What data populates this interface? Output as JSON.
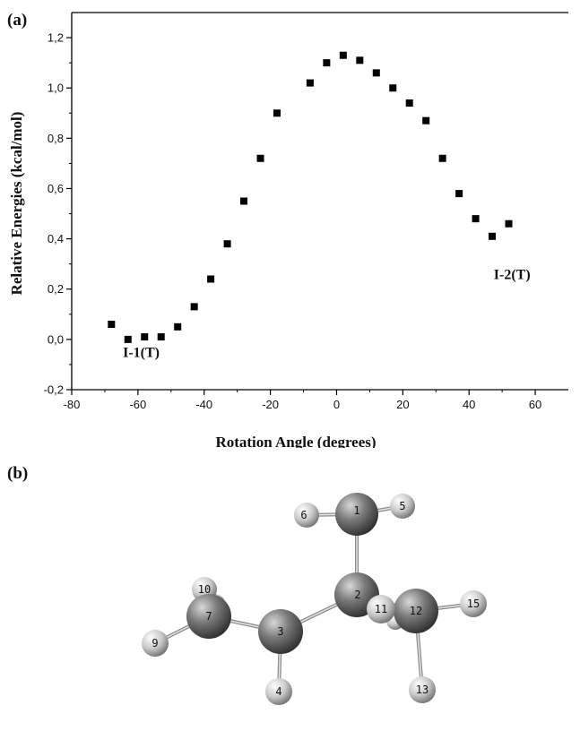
{
  "panel_a_label": "(a)",
  "panel_b_label": "(b)",
  "chart_data": {
    "type": "scatter",
    "xlabel": "Rotation Angle (degrees)",
    "ylabel": "Relative Energies (kcal/mol)",
    "xlim": [
      -80,
      70
    ],
    "ylim": [
      -0.2,
      1.3
    ],
    "x_ticks": [
      -80,
      -60,
      -40,
      -20,
      0,
      20,
      40,
      60
    ],
    "x_tick_labels": [
      "-80",
      "-60",
      "-40",
      "-20",
      "0",
      "20",
      "40",
      "60"
    ],
    "y_ticks": [
      -0.2,
      0.0,
      0.2,
      0.4,
      0.6,
      0.8,
      1.0,
      1.2
    ],
    "y_tick_labels": [
      "-0,2",
      "0,0",
      "0,2",
      "0,4",
      "0,6",
      "0,8",
      "1,0",
      "1,2"
    ],
    "grid": false,
    "marker": "square",
    "marker_color": "#000000",
    "x": [
      -68,
      -63,
      -58,
      -53,
      -48,
      -43,
      -38,
      -33,
      -28,
      -23,
      -18,
      -8,
      -3,
      2,
      7,
      12,
      17,
      22,
      27,
      32,
      37,
      42,
      47,
      52
    ],
    "y": [
      0.06,
      0.0,
      0.01,
      0.01,
      0.05,
      0.13,
      0.24,
      0.38,
      0.55,
      0.72,
      0.9,
      1.02,
      1.1,
      1.13,
      1.11,
      1.06,
      1.0,
      0.94,
      0.87,
      0.72,
      0.58,
      0.48,
      0.41,
      0.46
    ],
    "annotations": [
      {
        "text": "I-1(T)",
        "x": -59,
        "y": -0.07
      },
      {
        "text": "I-2(T)",
        "x": 53,
        "y": 0.24
      }
    ]
  },
  "molecule": {
    "atoms": [
      {
        "id": "1",
        "element": "C"
      },
      {
        "id": "2",
        "element": "C"
      },
      {
        "id": "3",
        "element": "C"
      },
      {
        "id": "4",
        "element": "H"
      },
      {
        "id": "5",
        "element": "H"
      },
      {
        "id": "6",
        "element": "H"
      },
      {
        "id": "7",
        "element": "C"
      },
      {
        "id": "9",
        "element": "H"
      },
      {
        "id": "10",
        "element": "H"
      },
      {
        "id": "11",
        "element": "H"
      },
      {
        "id": "12",
        "element": "C"
      },
      {
        "id": "13",
        "element": "H"
      },
      {
        "id": "15",
        "element": "H"
      }
    ],
    "bonds": [
      [
        "1",
        "2"
      ],
      [
        "1",
        "5"
      ],
      [
        "1",
        "6"
      ],
      [
        "2",
        "3"
      ],
      [
        "2",
        "12"
      ],
      [
        "2",
        "11"
      ],
      [
        "3",
        "7"
      ],
      [
        "3",
        "4"
      ],
      [
        "7",
        "9"
      ],
      [
        "7",
        "10"
      ],
      [
        "12",
        "15"
      ],
      [
        "12",
        "13"
      ]
    ],
    "carbon_color": "#777777",
    "hydrogen_color": "#cfcfcf"
  }
}
